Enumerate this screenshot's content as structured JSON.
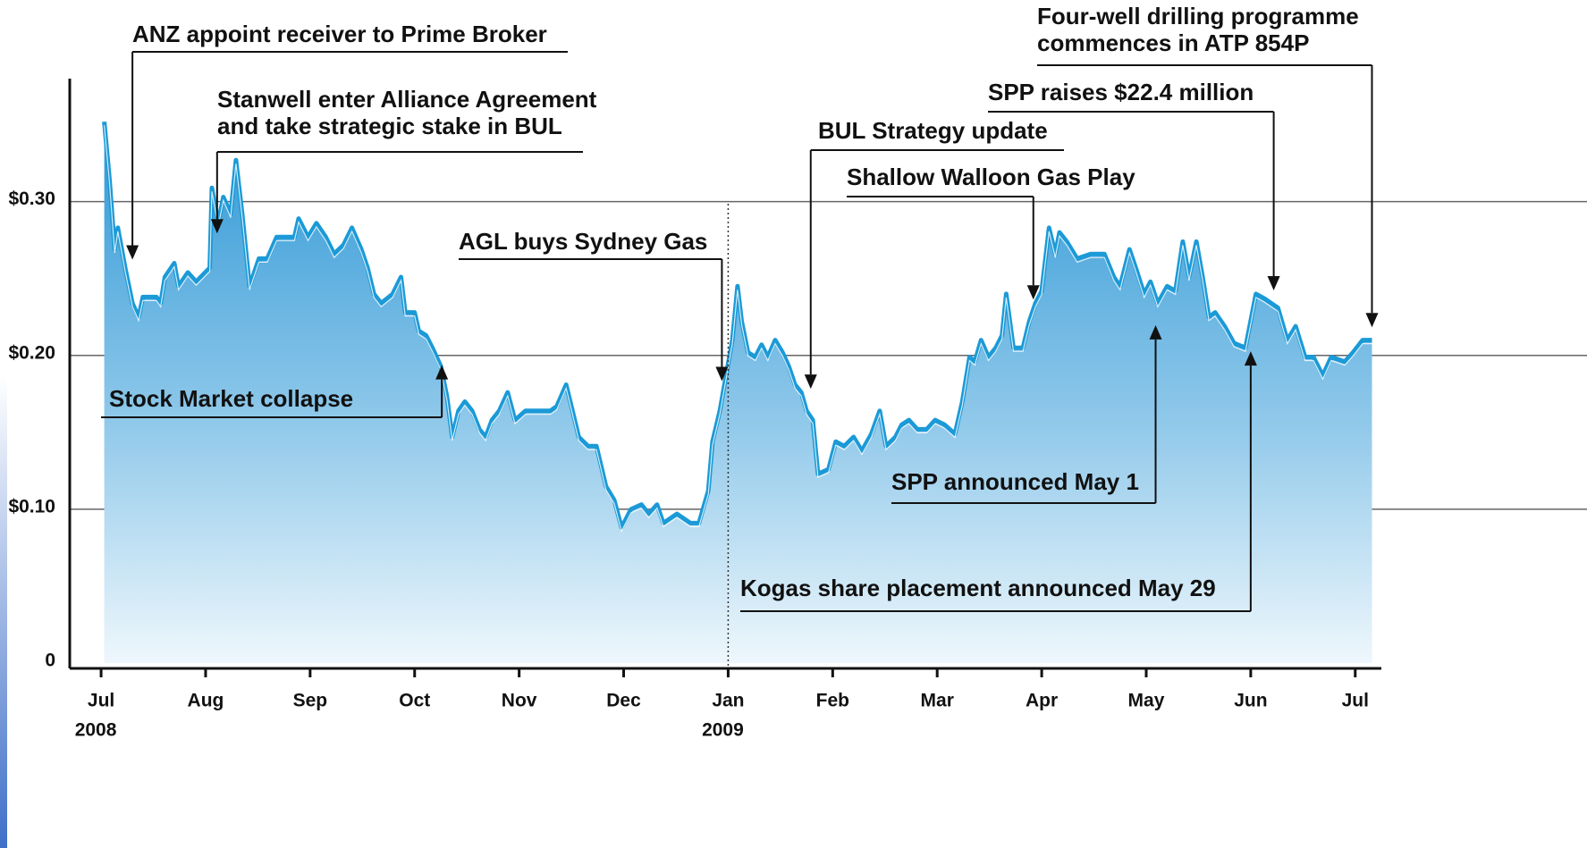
{
  "chart_data": {
    "type": "area",
    "xlim": [
      -0.3,
      12.25
    ],
    "ylim": [
      0,
      0.38
    ],
    "yticks": [
      {
        "value": 0,
        "label": "0"
      },
      {
        "value": 0.1,
        "label": "$0.10"
      },
      {
        "value": 0.2,
        "label": "$0.20"
      },
      {
        "value": 0.3,
        "label": "$0.30"
      }
    ],
    "xticks": [
      {
        "value": 0,
        "label": "Jul"
      },
      {
        "value": 1,
        "label": "Aug"
      },
      {
        "value": 2,
        "label": "Sep"
      },
      {
        "value": 3,
        "label": "Oct"
      },
      {
        "value": 4,
        "label": "Nov"
      },
      {
        "value": 5,
        "label": "Dec"
      },
      {
        "value": 6,
        "label": "Jan"
      },
      {
        "value": 7,
        "label": "Feb"
      },
      {
        "value": 8,
        "label": "Mar"
      },
      {
        "value": 9,
        "label": "Apr"
      },
      {
        "value": 10,
        "label": "May"
      },
      {
        "value": 11,
        "label": "Jun"
      },
      {
        "value": 12,
        "label": "Jul"
      }
    ],
    "year_labels": [
      {
        "value": 0,
        "label": "2008"
      },
      {
        "value": 6,
        "label": "2009"
      }
    ],
    "divider": 6,
    "grid": true,
    "color": "#1b9ad7",
    "x": [
      0.03,
      0.08,
      0.13,
      0.16,
      0.23,
      0.3,
      0.36,
      0.4,
      0.53,
      0.57,
      0.61,
      0.7,
      0.74,
      0.83,
      0.91,
      1.04,
      1.06,
      1.12,
      1.17,
      1.24,
      1.29,
      1.35,
      1.42,
      1.51,
      1.59,
      1.68,
      1.85,
      1.89,
      1.98,
      2.06,
      2.15,
      2.23,
      2.32,
      2.4,
      2.49,
      2.55,
      2.61,
      2.68,
      2.79,
      2.87,
      2.91,
      3.0,
      3.04,
      3.11,
      3.17,
      3.25,
      3.31,
      3.36,
      3.42,
      3.48,
      3.55,
      3.62,
      3.68,
      3.74,
      3.81,
      3.89,
      3.96,
      4.06,
      4.19,
      4.3,
      4.36,
      4.45,
      4.51,
      4.57,
      4.66,
      4.74,
      4.83,
      4.91,
      4.98,
      5.07,
      5.17,
      5.24,
      5.32,
      5.38,
      5.51,
      5.64,
      5.72,
      5.81,
      5.85,
      5.92,
      5.98,
      6.04,
      6.09,
      6.13,
      6.19,
      6.26,
      6.32,
      6.38,
      6.45,
      6.52,
      6.58,
      6.64,
      6.7,
      6.75,
      6.81,
      6.86,
      6.96,
      7.03,
      7.11,
      7.2,
      7.28,
      7.37,
      7.45,
      7.51,
      7.6,
      7.66,
      7.73,
      7.81,
      7.9,
      7.98,
      8.07,
      8.17,
      8.24,
      8.31,
      8.36,
      8.42,
      8.49,
      8.56,
      8.62,
      8.66,
      8.73,
      8.82,
      8.88,
      8.94,
      9.0,
      9.07,
      9.13,
      9.17,
      9.24,
      9.34,
      9.47,
      9.6,
      9.69,
      9.75,
      9.84,
      9.9,
      9.98,
      10.04,
      10.11,
      10.2,
      10.28,
      10.35,
      10.41,
      10.48,
      10.54,
      10.6,
      10.66,
      10.75,
      10.84,
      10.95,
      11.05,
      11.13,
      11.26,
      11.35,
      11.43,
      11.52,
      11.6,
      11.69,
      11.77,
      11.9,
      11.98,
      12.07,
      12.16
    ],
    "values": [
      0.352,
      0.315,
      0.269,
      0.283,
      0.257,
      0.234,
      0.225,
      0.238,
      0.238,
      0.234,
      0.251,
      0.26,
      0.245,
      0.254,
      0.248,
      0.257,
      0.309,
      0.286,
      0.303,
      0.292,
      0.327,
      0.292,
      0.245,
      0.263,
      0.263,
      0.277,
      0.277,
      0.289,
      0.277,
      0.286,
      0.277,
      0.266,
      0.272,
      0.283,
      0.269,
      0.257,
      0.24,
      0.234,
      0.24,
      0.251,
      0.228,
      0.228,
      0.216,
      0.213,
      0.205,
      0.193,
      0.173,
      0.147,
      0.164,
      0.17,
      0.164,
      0.152,
      0.147,
      0.158,
      0.164,
      0.176,
      0.158,
      0.164,
      0.164,
      0.164,
      0.167,
      0.181,
      0.164,
      0.147,
      0.141,
      0.141,
      0.115,
      0.106,
      0.088,
      0.1,
      0.103,
      0.097,
      0.103,
      0.091,
      0.097,
      0.091,
      0.091,
      0.112,
      0.144,
      0.164,
      0.187,
      0.21,
      0.245,
      0.222,
      0.202,
      0.199,
      0.207,
      0.199,
      0.21,
      0.202,
      0.193,
      0.181,
      0.176,
      0.164,
      0.158,
      0.123,
      0.126,
      0.144,
      0.141,
      0.147,
      0.138,
      0.149,
      0.164,
      0.141,
      0.147,
      0.155,
      0.158,
      0.152,
      0.152,
      0.158,
      0.155,
      0.149,
      0.17,
      0.199,
      0.196,
      0.21,
      0.199,
      0.205,
      0.213,
      0.24,
      0.205,
      0.205,
      0.222,
      0.234,
      0.242,
      0.283,
      0.266,
      0.28,
      0.274,
      0.263,
      0.266,
      0.266,
      0.251,
      0.245,
      0.269,
      0.257,
      0.24,
      0.248,
      0.234,
      0.245,
      0.242,
      0.274,
      0.251,
      0.274,
      0.251,
      0.225,
      0.228,
      0.219,
      0.208,
      0.205,
      0.24,
      0.237,
      0.231,
      0.21,
      0.219,
      0.199,
      0.199,
      0.187,
      0.199,
      0.196,
      0.202,
      0.21,
      0.21
    ],
    "annotations": [
      {
        "lines": [
          "ANZ appoint receiver to Prime Broker"
        ],
        "x": 0.3,
        "y": 0.26
      },
      {
        "lines": [
          "Stanwell enter Alliance Agreement",
          "and take strategic stake in BUL"
        ],
        "x": 1.11,
        "y": 0.277
      },
      {
        "lines": [
          "Stock Market collapse"
        ],
        "x": 3.26,
        "y": 0.196
      },
      {
        "lines": [
          "AGL buys Sydney Gas"
        ],
        "x": 5.94,
        "y": 0.181
      },
      {
        "lines": [
          "BUL Strategy update"
        ],
        "x": 6.79,
        "y": 0.176
      },
      {
        "lines": [
          "Shallow Walloon Gas Play"
        ],
        "x": 8.92,
        "y": 0.234
      },
      {
        "lines": [
          "SPP raises $22.4 million"
        ],
        "x": 11.22,
        "y": 0.24
      },
      {
        "lines": [
          "Four-well drilling programme",
          "commences in ATP 854P"
        ],
        "x": 12.16,
        "y": 0.216
      },
      {
        "lines": [
          "SPP announced May 1"
        ],
        "x": 10.09,
        "y": 0.222
      },
      {
        "lines": [
          "Kogas share placement announced May 29"
        ],
        "x": 11.0,
        "y": 0.205
      }
    ]
  }
}
